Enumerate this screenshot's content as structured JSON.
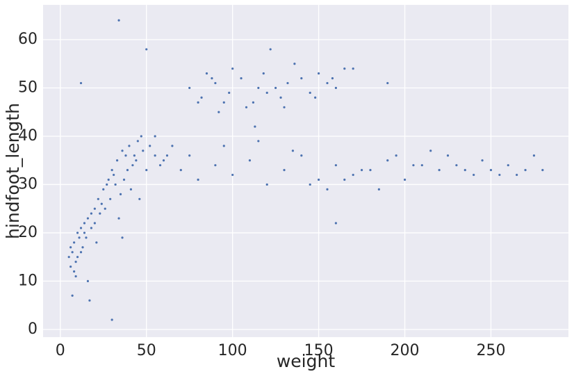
{
  "chart_data": {
    "type": "scatter",
    "x_label": "weight",
    "y_label": "hindfoot_length",
    "color": "#4c72b0",
    "xlim": [
      -10,
      295
    ],
    "ylim": [
      -1.6,
      67.2
    ],
    "xticks": [
      0,
      50,
      100,
      150,
      200,
      250
    ],
    "yticks": [
      0,
      10,
      20,
      30,
      40,
      50,
      60
    ],
    "grid": true,
    "x": [
      5,
      6,
      7,
      8,
      9,
      10,
      11,
      12,
      13,
      14,
      6,
      8,
      10,
      12,
      14,
      16,
      18,
      20,
      15,
      9,
      22,
      25,
      28,
      30,
      33,
      36,
      38,
      40,
      42,
      45,
      24,
      27,
      31,
      35,
      39,
      44,
      48,
      52,
      55,
      58,
      20,
      23,
      26,
      29,
      32,
      37,
      41,
      46,
      50,
      60,
      62,
      65,
      55,
      47,
      43,
      34,
      36,
      18,
      21,
      16,
      75,
      82,
      90,
      98,
      105,
      112,
      118,
      125,
      132,
      140,
      145,
      150,
      155,
      160,
      165,
      170,
      128,
      136,
      108,
      95,
      80,
      88,
      100,
      115,
      130,
      148,
      158,
      85,
      92,
      120,
      70,
      80,
      90,
      100,
      110,
      120,
      130,
      140,
      150,
      160,
      170,
      180,
      190,
      200,
      210,
      220,
      230,
      240,
      250,
      260,
      270,
      275,
      280,
      265,
      245,
      225,
      205,
      185,
      165,
      145,
      75,
      95,
      115,
      135,
      155,
      175,
      195,
      215,
      235,
      255,
      34,
      50,
      122,
      30,
      12,
      17,
      7,
      113,
      160,
      190
    ],
    "y": [
      15,
      17,
      16,
      18,
      14,
      20,
      19,
      21,
      17,
      22,
      13,
      12,
      15,
      16,
      20,
      23,
      24,
      25,
      19,
      11,
      27,
      29,
      31,
      33,
      35,
      37,
      36,
      38,
      34,
      39,
      26,
      30,
      32,
      28,
      33,
      35,
      37,
      38,
      36,
      34,
      22,
      24,
      25,
      27,
      30,
      31,
      29,
      27,
      33,
      35,
      36,
      38,
      40,
      40,
      36,
      23,
      19,
      21,
      18,
      10,
      50,
      48,
      51,
      49,
      52,
      47,
      53,
      50,
      51,
      52,
      49,
      53,
      51,
      50,
      54,
      54,
      48,
      55,
      46,
      47,
      47,
      52,
      54,
      50,
      46,
      48,
      52,
      53,
      45,
      49,
      33,
      31,
      34,
      32,
      35,
      30,
      33,
      36,
      31,
      34,
      32,
      33,
      35,
      31,
      34,
      33,
      34,
      32,
      33,
      34,
      33,
      36,
      33,
      32,
      35,
      36,
      34,
      29,
      31,
      30,
      36,
      38,
      39,
      37,
      29,
      33,
      36,
      37,
      33,
      32,
      64,
      58,
      58,
      2,
      51,
      6,
      7,
      42,
      22,
      51
    ]
  }
}
